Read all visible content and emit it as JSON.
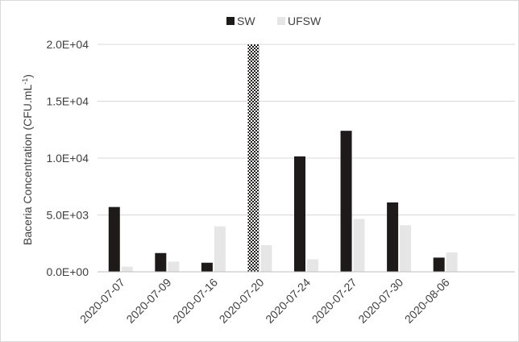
{
  "chart_data": {
    "type": "bar",
    "categories": [
      "2020-07-07",
      "2020-07-09",
      "2020-07-16",
      "2020-07-20",
      "2020-07-24",
      "2020-07-27",
      "2020-07-30",
      "2020-08-06"
    ],
    "series": [
      {
        "name": "SW",
        "color": "#1f1a1a",
        "values": [
          5700,
          1650,
          800,
          20000,
          10150,
          12400,
          6100,
          1250
        ]
      },
      {
        "name": "UFSW",
        "color": "#e6e6e6",
        "values": [
          450,
          900,
          4000,
          2350,
          1100,
          4650,
          4100,
          1700
        ]
      }
    ],
    "highlight": {
      "series": "SW",
      "category": "2020-07-20",
      "pattern": "checker",
      "note_visible": false
    },
    "ylabel": "Baceria Concentration (CFU.mL-1)",
    "ylabel_parts": {
      "main": "Baceria Concentration (CFU.mL",
      "superscript": "-1",
      "close": ")"
    },
    "ylim": [
      0,
      20000
    ],
    "yticks": [
      {
        "value": 0,
        "label": "0.0E+00"
      },
      {
        "value": 5000,
        "label": "5.0E+03"
      },
      {
        "value": 10000,
        "label": "1.0E+04"
      },
      {
        "value": 15000,
        "label": "1.5E+04"
      },
      {
        "value": 20000,
        "label": "2.0E+04"
      }
    ],
    "grid": true,
    "legend": "top-center",
    "slot_count": 9
  }
}
